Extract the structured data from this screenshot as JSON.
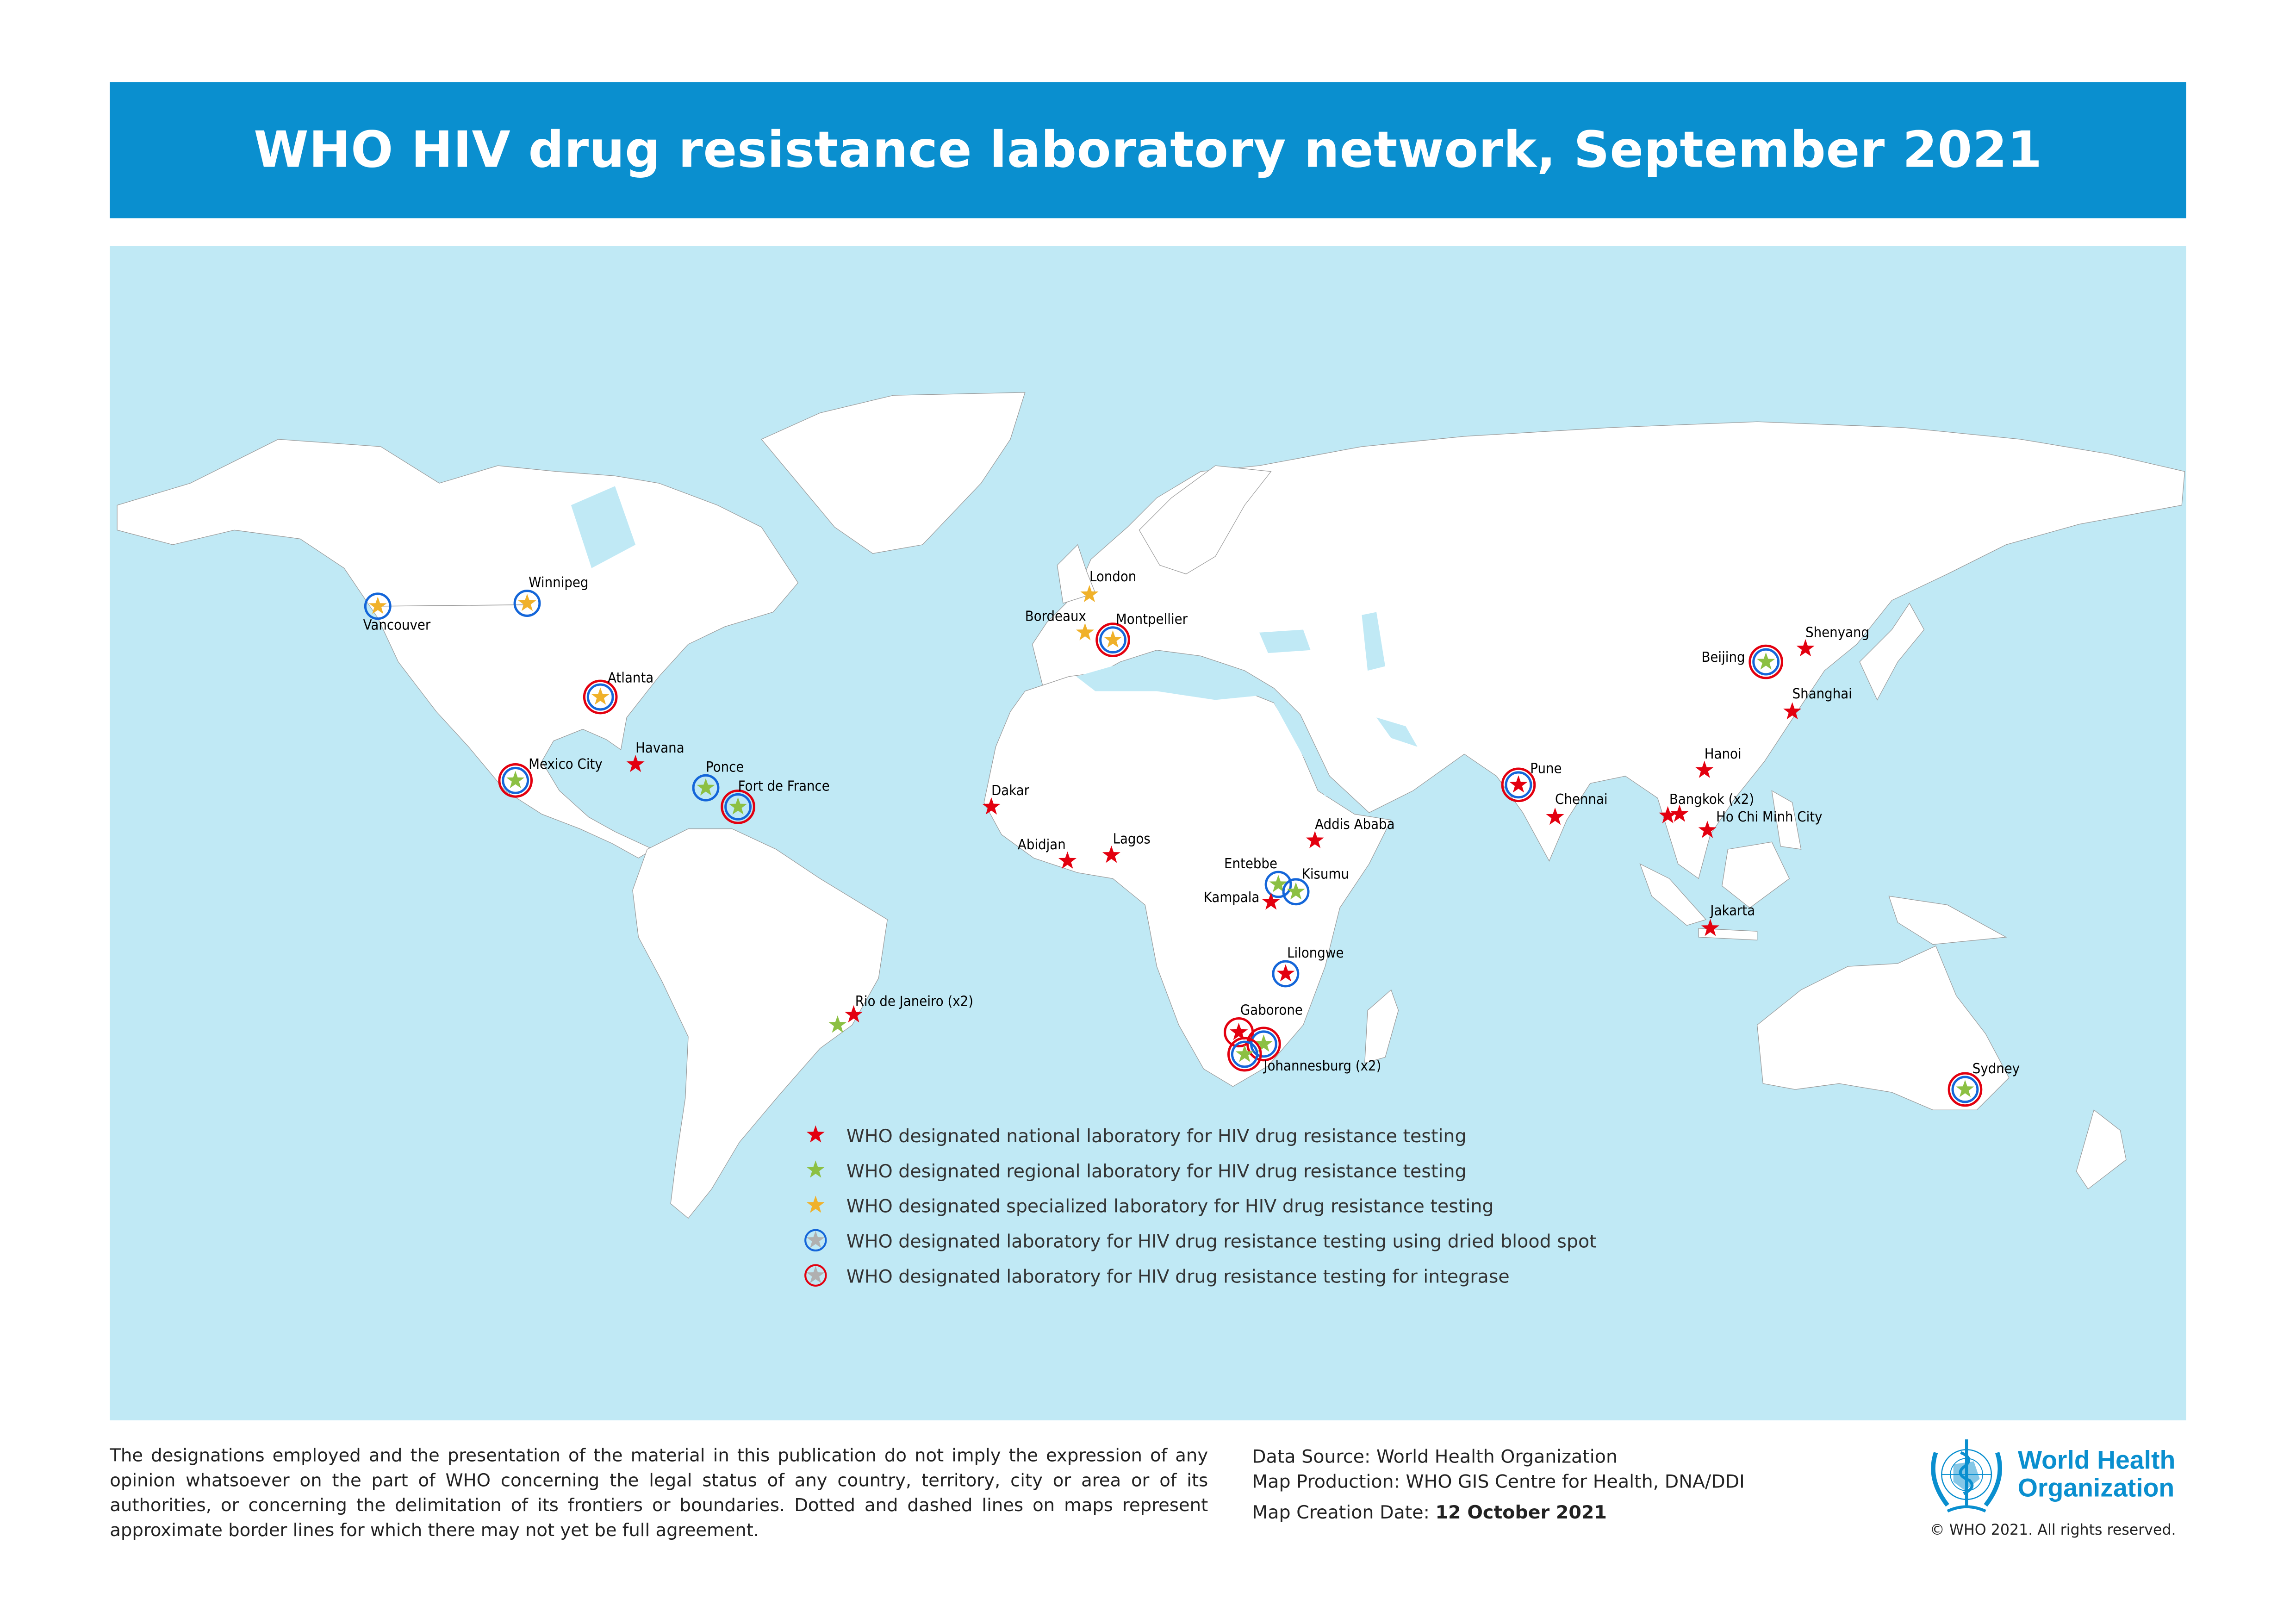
{
  "title": "WHO HIV drug resistance laboratory network, September 2021",
  "colors": {
    "banner": "#0a8fcf",
    "ocean": "#c0e9f5",
    "land": "#ffffff",
    "national": "#e3000f",
    "regional": "#8cc043",
    "specialized": "#f0b12a",
    "dried_blood_spot_ring": "#1466d9",
    "integrase_ring": "#e3000f"
  },
  "legend": [
    {
      "type": "national",
      "icon": "red-star-icon",
      "label": "WHO designated national laboratory for HIV drug resistance testing"
    },
    {
      "type": "regional",
      "icon": "green-star-icon",
      "label": "WHO designated regional laboratory for HIV drug resistance testing"
    },
    {
      "type": "specialized",
      "icon": "yellow-star-icon",
      "label": "WHO designated specialized laboratory for HIV drug resistance testing"
    },
    {
      "type": "dbs",
      "icon": "blue-ring-star-icon",
      "label": "WHO designated laboratory for HIV drug resistance testing using dried blood spot"
    },
    {
      "type": "integrase",
      "icon": "red-ring-star-icon",
      "label": "WHO designated laboratory for HIV drug resistance testing for integrase"
    }
  ],
  "laboratories": [
    {
      "city": "Vancouver",
      "level": "specialized",
      "dbs": true,
      "integrase": false
    },
    {
      "city": "Winnipeg",
      "level": "specialized",
      "dbs": true,
      "integrase": false
    },
    {
      "city": "Atlanta",
      "level": "specialized",
      "dbs": true,
      "integrase": true
    },
    {
      "city": "Mexico City",
      "level": "regional",
      "dbs": true,
      "integrase": true
    },
    {
      "city": "Havana",
      "level": "national",
      "dbs": false,
      "integrase": false
    },
    {
      "city": "Ponce",
      "level": "regional",
      "dbs": true,
      "integrase": false
    },
    {
      "city": "Fort de France",
      "level": "regional",
      "dbs": true,
      "integrase": true
    },
    {
      "city": "Rio de Janeiro (x2)",
      "level": "national+regional",
      "dbs": false,
      "integrase": false
    },
    {
      "city": "Dakar",
      "level": "national",
      "dbs": false,
      "integrase": false
    },
    {
      "city": "Abidjan",
      "level": "national",
      "dbs": false,
      "integrase": false
    },
    {
      "city": "Lagos",
      "level": "national",
      "dbs": false,
      "integrase": false
    },
    {
      "city": "London",
      "level": "specialized",
      "dbs": false,
      "integrase": false
    },
    {
      "city": "Bordeaux",
      "level": "specialized",
      "dbs": false,
      "integrase": false
    },
    {
      "city": "Montpellier",
      "level": "specialized",
      "dbs": true,
      "integrase": true
    },
    {
      "city": "Addis Ababa",
      "level": "national",
      "dbs": false,
      "integrase": false
    },
    {
      "city": "Entebbe",
      "level": "regional",
      "dbs": true,
      "integrase": false
    },
    {
      "city": "Kisumu",
      "level": "regional",
      "dbs": true,
      "integrase": false
    },
    {
      "city": "Kampala",
      "level": "national",
      "dbs": false,
      "integrase": false
    },
    {
      "city": "Lilongwe",
      "level": "national",
      "dbs": true,
      "integrase": false
    },
    {
      "city": "Gaborone",
      "level": "national",
      "dbs": false,
      "integrase": true
    },
    {
      "city": "Johannesburg (x2)",
      "level": "regional",
      "dbs": true,
      "integrase": true
    },
    {
      "city": "Pune",
      "level": "national",
      "dbs": true,
      "integrase": true
    },
    {
      "city": "Chennai",
      "level": "national",
      "dbs": false,
      "integrase": false
    },
    {
      "city": "Bangkok (x2)",
      "level": "national",
      "dbs": false,
      "integrase": false
    },
    {
      "city": "Ho Chi Minh City",
      "level": "national",
      "dbs": false,
      "integrase": false
    },
    {
      "city": "Hanoi",
      "level": "national",
      "dbs": false,
      "integrase": false
    },
    {
      "city": "Shanghai",
      "level": "national",
      "dbs": false,
      "integrase": false
    },
    {
      "city": "Shenyang",
      "level": "national",
      "dbs": false,
      "integrase": false
    },
    {
      "city": "Beijing",
      "level": "regional",
      "dbs": true,
      "integrase": true
    },
    {
      "city": "Jakarta",
      "level": "national",
      "dbs": false,
      "integrase": false
    },
    {
      "city": "Sydney",
      "level": "regional",
      "dbs": true,
      "integrase": true
    }
  ],
  "footer": {
    "disclaimer": "The designations employed and the presentation of the material in this publication do not imply the expression of any opinion whatsoever on the part of WHO concerning the legal status of any country, territory, city or area or of its authorities, or concerning the delimitation of its frontiers or boundaries. Dotted and dashed lines on maps represent approximate border lines for which there may not yet be full agreement.",
    "data_source": "Data Source: World Health Organization",
    "map_production": "Map Production: WHO GIS Centre for Health, DNA/DDI",
    "creation_date_label": "Map Creation Date: ",
    "creation_date": "12 October 2021",
    "logo_text": "World Health Organization",
    "logo_line1": "World Health",
    "logo_line2": "Organization",
    "copyright": "© WHO 2021. All rights reserved."
  }
}
